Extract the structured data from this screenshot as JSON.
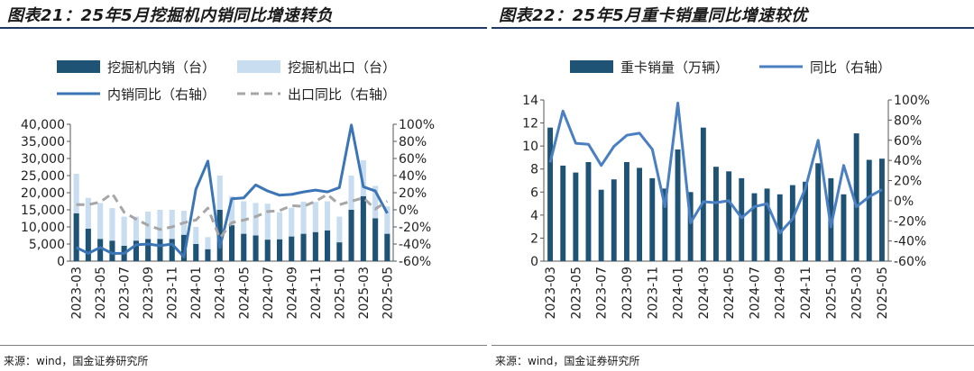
{
  "charts": [
    {
      "title": "图表21：25年5月挖掘机内销同比增速转负",
      "source": "来源：wind，国金证券研究所"
    },
    {
      "title": "图表22：25年5月重卡销量同比增速较优",
      "source": "来源：wind，国金证券研究所"
    }
  ],
  "chart_data": [
    {
      "type": "bar",
      "title": "图表21：25年5月挖掘机内销同比增速转负",
      "categories": [
        "2023-03",
        "2023-04",
        "2023-05",
        "2023-06",
        "2023-07",
        "2023-08",
        "2023-09",
        "2023-10",
        "2023-11",
        "2023-12",
        "2024-01",
        "2024-02",
        "2024-03",
        "2024-04",
        "2024-05",
        "2024-06",
        "2024-07",
        "2024-08",
        "2024-09",
        "2024-10",
        "2024-11",
        "2024-12",
        "2025-01",
        "2025-02",
        "2025-03",
        "2025-04",
        "2025-05"
      ],
      "x_tick_labels": [
        "2023-03",
        "2023-05",
        "2023-07",
        "2023-09",
        "2023-11",
        "2024-01",
        "2024-03",
        "2024-05",
        "2024-07",
        "2024-09",
        "2024-11",
        "2025-01",
        "2025-03",
        "2025-05"
      ],
      "left_axis": {
        "ylim": [
          0,
          40000
        ],
        "ticks": [
          "0",
          "5,000",
          "10,000",
          "15,000",
          "20,000",
          "25,000",
          "30,000",
          "35,000",
          "40,000"
        ]
      },
      "right_axis": {
        "ylim": [
          -60,
          100
        ],
        "ticks": [
          "-60%",
          "-40%",
          "-20%",
          "0%",
          "20%",
          "40%",
          "60%",
          "80%",
          "100%"
        ]
      },
      "legend_position": "top",
      "series": [
        {
          "name": "挖掘机内销（台）",
          "kind": "bar",
          "axis": "left",
          "stacked": true,
          "color": "#1f5376",
          "values": [
            14000,
            9500,
            6500,
            6000,
            4500,
            6000,
            6500,
            6500,
            6500,
            7700,
            5000,
            3500,
            15000,
            10500,
            8000,
            7500,
            6300,
            6400,
            7200,
            8000,
            8500,
            9000,
            5500,
            15000,
            19000,
            12500,
            8000
          ]
        },
        {
          "name": "挖掘机出口（台）",
          "kind": "bar",
          "axis": "left",
          "stacked": true,
          "color": "#c8ddf0",
          "values": [
            11500,
            9000,
            10500,
            9500,
            8500,
            7000,
            8000,
            8500,
            8500,
            7000,
            5000,
            3500,
            10000,
            8500,
            9500,
            9500,
            10500,
            7900,
            8400,
            9400,
            8800,
            8500,
            7500,
            10000,
            10500,
            9500,
            8000
          ]
        },
        {
          "name": "内销同比（右轴）",
          "kind": "line",
          "axis": "right",
          "color": "#3b75b6",
          "values": [
            -44,
            -51,
            -44,
            -51,
            -51,
            -41,
            -40,
            -42,
            -40,
            -55,
            24,
            57,
            -44,
            13,
            14,
            29,
            22,
            17,
            18,
            21,
            23,
            21,
            26,
            99,
            27,
            22,
            -4
          ]
        },
        {
          "name": "出口同比（右轴）",
          "kind": "line",
          "axis": "right",
          "dashed": true,
          "color": "#a6a6a6",
          "values": [
            6,
            6,
            9,
            19,
            -3,
            -11,
            -18,
            -23,
            -20,
            -15,
            -12,
            2,
            -33,
            -15,
            -12,
            -8,
            -2,
            -1,
            5,
            4,
            10,
            18,
            6,
            10,
            14,
            1,
            10
          ]
        }
      ]
    },
    {
      "type": "bar",
      "title": "图表22：25年5月重卡销量同比增速较优",
      "categories": [
        "2023-03",
        "2023-04",
        "2023-05",
        "2023-06",
        "2023-07",
        "2023-08",
        "2023-09",
        "2023-10",
        "2023-11",
        "2023-12",
        "2024-01",
        "2024-02",
        "2024-03",
        "2024-04",
        "2024-05",
        "2024-06",
        "2024-07",
        "2024-08",
        "2024-09",
        "2024-10",
        "2024-11",
        "2024-12",
        "2025-01",
        "2025-02",
        "2025-03",
        "2025-04",
        "2025-05"
      ],
      "x_tick_labels": [
        "2023-03",
        "2023-05",
        "2023-07",
        "2023-09",
        "2023-11",
        "2024-01",
        "2024-03",
        "2024-05",
        "2024-07",
        "2024-09",
        "2024-11",
        "2025-01",
        "2025-03",
        "2025-05"
      ],
      "left_axis": {
        "ylim": [
          0,
          14
        ],
        "ticks": [
          "0",
          "2",
          "4",
          "6",
          "8",
          "10",
          "12",
          "14"
        ]
      },
      "right_axis": {
        "ylim": [
          -60,
          100
        ],
        "ticks": [
          "-60%",
          "-40%",
          "-20%",
          "0%",
          "20%",
          "40%",
          "60%",
          "80%",
          "100%"
        ]
      },
      "legend_position": "top",
      "series": [
        {
          "name": "重卡销量（万辆）",
          "kind": "bar",
          "axis": "left",
          "color": "#1f5376",
          "values": [
            11.6,
            8.3,
            7.7,
            8.6,
            6.2,
            7.1,
            8.6,
            8.1,
            7.2,
            6.3,
            9.7,
            6.0,
            11.6,
            8.2,
            7.8,
            7.2,
            5.9,
            6.3,
            5.8,
            6.6,
            6.9,
            8.5,
            7.2,
            5.8,
            11.1,
            8.8,
            8.9
          ]
        },
        {
          "name": "同比（右轴）",
          "kind": "line",
          "axis": "right",
          "color": "#4a7fc1",
          "values": [
            38,
            89,
            57,
            56,
            35,
            54,
            65,
            67,
            51,
            -6,
            97,
            -22,
            -1,
            -2,
            0,
            -17,
            -6,
            -3,
            -32,
            -18,
            12,
            60,
            -26,
            35,
            -6,
            4,
            11
          ]
        }
      ]
    }
  ]
}
